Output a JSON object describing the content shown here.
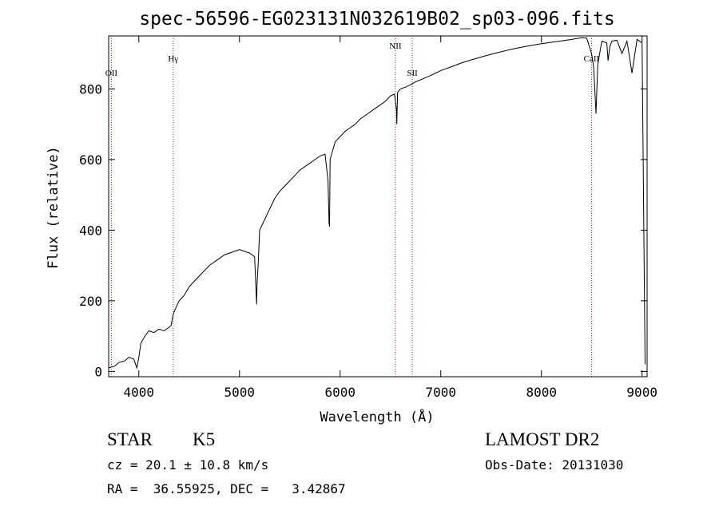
{
  "chart_data": {
    "type": "line",
    "title": "spec-56596-EG023131N032619B02_sp03-096.fits",
    "xlabel": "Wavelength (Å)",
    "ylabel": "Flux (relative)",
    "xlim": [
      3700,
      9050
    ],
    "ylim": [
      -15,
      950
    ],
    "x_ticks": [
      4000,
      5000,
      6000,
      7000,
      8000,
      9000
    ],
    "y_ticks": [
      0,
      200,
      400,
      600,
      800
    ],
    "grid": false,
    "line_color": "#000000",
    "marker_color": "#b22222",
    "line_markers": [
      {
        "label": "OII",
        "wavelength": 3727
      },
      {
        "label": "Hγ",
        "wavelength": 4341
      },
      {
        "label": "NII",
        "wavelength": 6549
      },
      {
        "label": "SII",
        "wavelength": 6717
      },
      {
        "label": "CaII",
        "wavelength": 8498
      }
    ],
    "series": [
      {
        "x": [
          3700,
          3760,
          3800,
          3860,
          3900,
          3950,
          3980,
          4000,
          4020,
          4060,
          4100,
          4150,
          4200,
          4250,
          4300,
          4320,
          4340,
          4360,
          4400,
          4450,
          4500,
          4550,
          4600,
          4650,
          4700,
          4750,
          4800,
          4850,
          4900,
          4950,
          5000,
          5050,
          5100,
          5150,
          5170,
          5175,
          5185,
          5200,
          5250,
          5300,
          5350,
          5400,
          5450,
          5500,
          5550,
          5600,
          5650,
          5700,
          5750,
          5800,
          5850,
          5880,
          5890,
          5895,
          5900,
          5920,
          5950,
          6000,
          6050,
          6100,
          6150,
          6200,
          6250,
          6300,
          6350,
          6400,
          6450,
          6500,
          6540,
          6560,
          6563,
          6570,
          6600,
          6650,
          6700,
          6750,
          6800,
          6850,
          6900,
          6950,
          7000,
          7100,
          7200,
          7300,
          7400,
          7500,
          7600,
          7700,
          7800,
          7900,
          8000,
          8100,
          8200,
          8300,
          8400,
          8450,
          8498,
          8520,
          8542,
          8560,
          8600,
          8650,
          8662,
          8680,
          8700,
          8750,
          8800,
          8850,
          8900,
          8950,
          9000,
          9030
        ],
        "y": [
          10,
          15,
          25,
          30,
          40,
          35,
          10,
          40,
          80,
          100,
          115,
          110,
          120,
          115,
          125,
          130,
          160,
          175,
          200,
          215,
          240,
          255,
          270,
          285,
          300,
          310,
          320,
          330,
          335,
          340,
          345,
          340,
          335,
          325,
          190,
          250,
          300,
          400,
          430,
          460,
          490,
          510,
          525,
          540,
          555,
          570,
          580,
          590,
          600,
          610,
          615,
          540,
          420,
          410,
          600,
          620,
          650,
          665,
          680,
          690,
          700,
          715,
          725,
          735,
          745,
          755,
          765,
          780,
          785,
          740,
          700,
          790,
          800,
          805,
          812,
          820,
          826,
          832,
          838,
          845,
          852,
          862,
          873,
          882,
          890,
          898,
          905,
          912,
          918,
          923,
          928,
          932,
          936,
          940,
          945,
          944,
          900,
          860,
          730,
          870,
          935,
          930,
          880,
          920,
          935,
          938,
          900,
          935,
          845,
          940,
          930,
          20
        ]
      }
    ]
  },
  "info": {
    "object_class": "STAR",
    "subclass": "K5",
    "survey": "LAMOST DR2",
    "cz": "cz = 20.1 ± 10.8 km/s",
    "obs_date": "Obs-Date: 20131030",
    "radec": "RA =  36.55925, DEC =   3.42867"
  }
}
